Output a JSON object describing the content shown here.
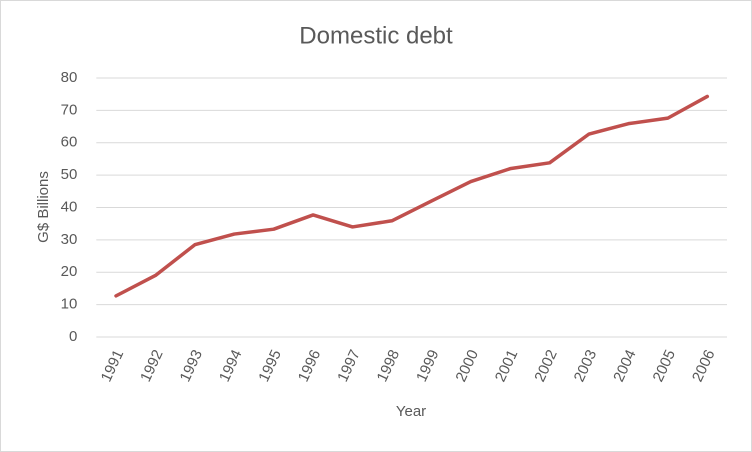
{
  "chart_data": {
    "type": "line",
    "title": "Domestic debt",
    "x_label": "Year",
    "y_label": "G$ Billions",
    "categories": [
      "1991",
      "1992",
      "1993",
      "1994",
      "1995",
      "1996",
      "1997",
      "1998",
      "1999",
      "2000",
      "2001",
      "2002",
      "2003",
      "2004",
      "2005",
      "2006"
    ],
    "series": [
      {
        "name": "Domestic debt",
        "color": "#c0504d",
        "values": [
          12.7,
          19,
          28.5,
          31.8,
          33.3,
          37.7,
          34,
          35.9,
          42,
          48,
          52,
          53.8,
          62.7,
          65.9,
          67.6,
          74.3
        ]
      }
    ],
    "ylim": [
      0,
      80
    ],
    "yticks": [
      0,
      10,
      20,
      30,
      40,
      50,
      60,
      70,
      80
    ],
    "grid": true,
    "legend": false
  }
}
